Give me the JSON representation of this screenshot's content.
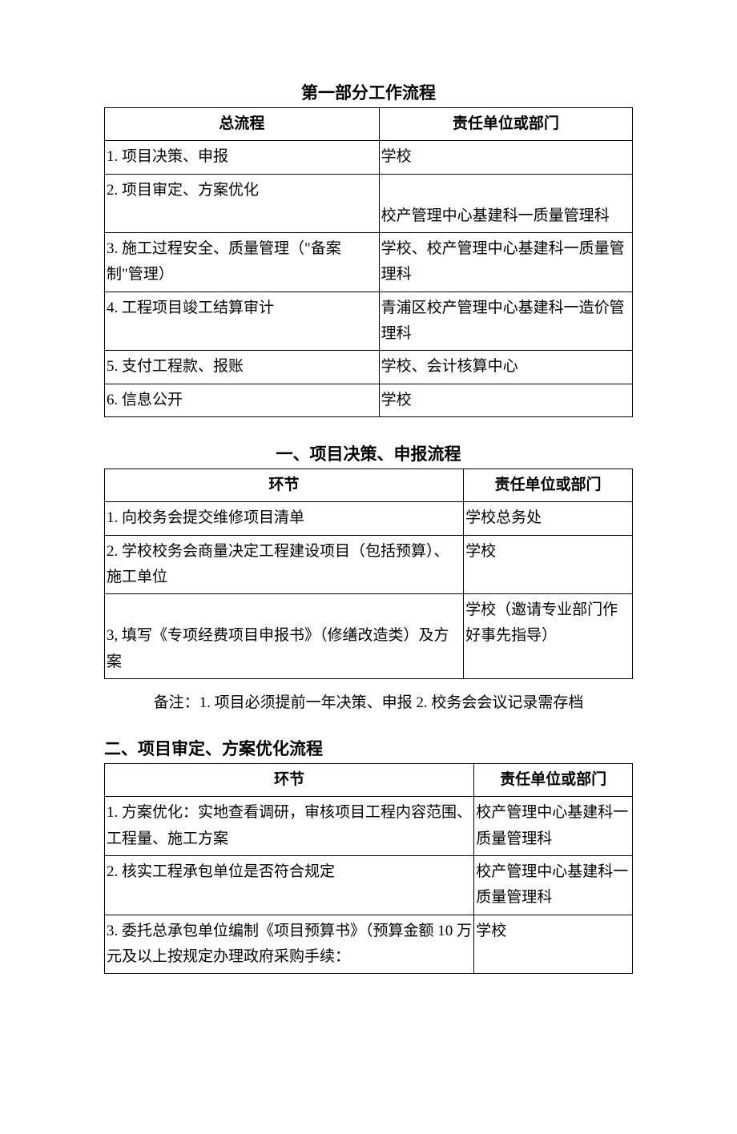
{
  "section1": {
    "title": "第一部分工作流程",
    "header_left": "总流程",
    "header_right": "责任单位或部门",
    "rows": [
      {
        "left": "1. 项目决策、申报",
        "right": "学校"
      },
      {
        "left": "2. 项目审定、方案优化\n",
        "right": "\n校产管理中心基建科一质量管理科"
      },
      {
        "left": "3. 施工过程安全、质量管理（\"备案制\"管理）",
        "right": "学校、校产管理中心基建科一质量管理科"
      },
      {
        "left": "4. 工程项目竣工结算审计",
        "right": "青浦区校产管理中心基建科一造价管理科"
      },
      {
        "left": "5. 支付工程款、报账",
        "right": "学校、会计核算中心"
      },
      {
        "left": "6. 信息公开",
        "right": "学校"
      }
    ]
  },
  "section2": {
    "title": "一、项目决策、申报流程",
    "header_left": "环节",
    "header_right": "责任单位或部门",
    "rows": [
      {
        "left": "1. 向校务会提交维修项目清单",
        "right": "学校总务处"
      },
      {
        "left": "2. 学校校务会商量决定工程建设项目（包括预算）、施工单位",
        "right": "学校"
      },
      {
        "left": "\n3, 填写《专项经费项目申报书》（修缮改造类）及方案",
        "right": "学校（邀请专业部门作好事先指导）"
      }
    ],
    "note": "备注：1. 项目必须提前一年决策、申报 2. 校务会会议记录需存档"
  },
  "section3": {
    "title": "二、项目审定、方案优化流程",
    "header_left": "环节",
    "header_right": "责任单位或部门",
    "rows": [
      {
        "left": "1. 方案优化：实地查看调研，审核项目工程内容范围、工程量、施工方案",
        "right": "校产管理中心基建科一质量管理科"
      },
      {
        "left": "2. 核实工程承包单位是否符合规定",
        "right": "校产管理中心基建科一质量管理科"
      },
      {
        "left": "3. 委托总承包单位编制《项目预算书》（预算金额 10 万元及以上按规定办理政府采购手续：",
        "right": "学校"
      }
    ]
  }
}
